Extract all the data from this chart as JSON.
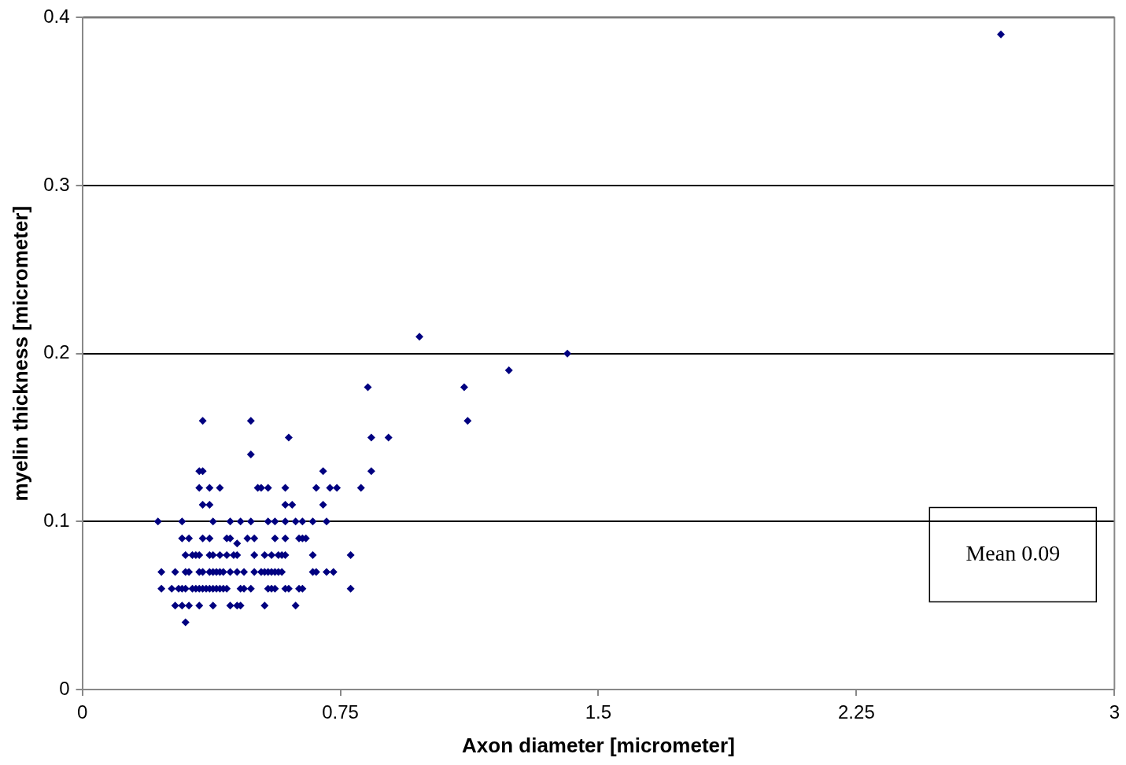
{
  "chart_data": {
    "type": "scatter",
    "xlabel": "Axon diameter [micrometer]",
    "ylabel": "myelin thickness [micrometer]",
    "xlim": [
      0,
      3
    ],
    "xticks": [
      0,
      0.75,
      1.5,
      2.25,
      3
    ],
    "ylim": [
      0,
      0.4
    ],
    "yticks": [
      0,
      0.1,
      0.2,
      0.3,
      0.4
    ],
    "grid": "y",
    "legend": false,
    "marker": "diamond",
    "annotations": [
      "Mean 0.09"
    ],
    "series": [
      {
        "color": "#000080",
        "x": [
          0.35,
          0.49,
          0.6,
          0.84,
          0.89,
          0.49,
          0.34,
          0.35,
          0.7,
          0.84,
          0.34,
          0.37,
          0.4,
          0.51,
          0.52,
          0.54,
          0.59,
          0.68,
          0.72,
          0.74,
          0.81,
          0.35,
          0.37,
          0.59,
          0.61,
          0.7,
          0.22,
          0.29,
          0.38,
          0.43,
          0.46,
          0.49,
          0.54,
          0.56,
          0.59,
          0.62,
          0.64,
          0.67,
          0.71,
          0.29,
          0.31,
          0.35,
          0.37,
          0.42,
          0.43,
          0.48,
          0.5,
          0.56,
          0.59,
          0.63,
          0.64,
          0.65,
          0.45,
          0.3,
          0.32,
          0.33,
          0.34,
          0.37,
          0.38,
          0.4,
          0.42,
          0.44,
          0.45,
          0.5,
          0.53,
          0.55,
          0.57,
          0.58,
          0.59,
          0.67,
          0.78,
          0.23,
          0.27,
          0.3,
          0.31,
          0.34,
          0.35,
          0.37,
          0.38,
          0.39,
          0.4,
          0.41,
          0.43,
          0.45,
          0.47,
          0.5,
          0.52,
          0.53,
          0.54,
          0.55,
          0.56,
          0.57,
          0.58,
          0.67,
          0.68,
          0.71,
          0.73,
          0.23,
          0.26,
          0.28,
          0.29,
          0.3,
          0.32,
          0.33,
          0.34,
          0.35,
          0.36,
          0.37,
          0.38,
          0.39,
          0.4,
          0.41,
          0.42,
          0.46,
          0.47,
          0.49,
          0.54,
          0.55,
          0.56,
          0.59,
          0.6,
          0.63,
          0.64,
          0.78,
          0.27,
          0.29,
          0.31,
          0.34,
          0.38,
          0.43,
          0.45,
          0.46,
          0.53,
          0.62,
          0.3,
          0.98,
          1.41,
          1.24,
          0.83,
          1.11,
          1.12,
          2.67
        ],
        "values": [
          0.16,
          0.16,
          0.15,
          0.15,
          0.15,
          0.14,
          0.13,
          0.13,
          0.13,
          0.13,
          0.12,
          0.12,
          0.12,
          0.12,
          0.12,
          0.12,
          0.12,
          0.12,
          0.12,
          0.12,
          0.12,
          0.11,
          0.11,
          0.11,
          0.11,
          0.11,
          0.1,
          0.1,
          0.1,
          0.1,
          0.1,
          0.1,
          0.1,
          0.1,
          0.1,
          0.1,
          0.1,
          0.1,
          0.1,
          0.09,
          0.09,
          0.09,
          0.09,
          0.09,
          0.09,
          0.09,
          0.09,
          0.09,
          0.09,
          0.09,
          0.09,
          0.09,
          0.087,
          0.08,
          0.08,
          0.08,
          0.08,
          0.08,
          0.08,
          0.08,
          0.08,
          0.08,
          0.08,
          0.08,
          0.08,
          0.08,
          0.08,
          0.08,
          0.08,
          0.08,
          0.08,
          0.07,
          0.07,
          0.07,
          0.07,
          0.07,
          0.07,
          0.07,
          0.07,
          0.07,
          0.07,
          0.07,
          0.07,
          0.07,
          0.07,
          0.07,
          0.07,
          0.07,
          0.07,
          0.07,
          0.07,
          0.07,
          0.07,
          0.07,
          0.07,
          0.07,
          0.07,
          0.06,
          0.06,
          0.06,
          0.06,
          0.06,
          0.06,
          0.06,
          0.06,
          0.06,
          0.06,
          0.06,
          0.06,
          0.06,
          0.06,
          0.06,
          0.06,
          0.06,
          0.06,
          0.06,
          0.06,
          0.06,
          0.06,
          0.06,
          0.06,
          0.06,
          0.06,
          0.06,
          0.05,
          0.05,
          0.05,
          0.05,
          0.05,
          0.05,
          0.05,
          0.05,
          0.05,
          0.05,
          0.04,
          0.21,
          0.2,
          0.19,
          0.18,
          0.18,
          0.16,
          0.39
        ]
      }
    ]
  }
}
